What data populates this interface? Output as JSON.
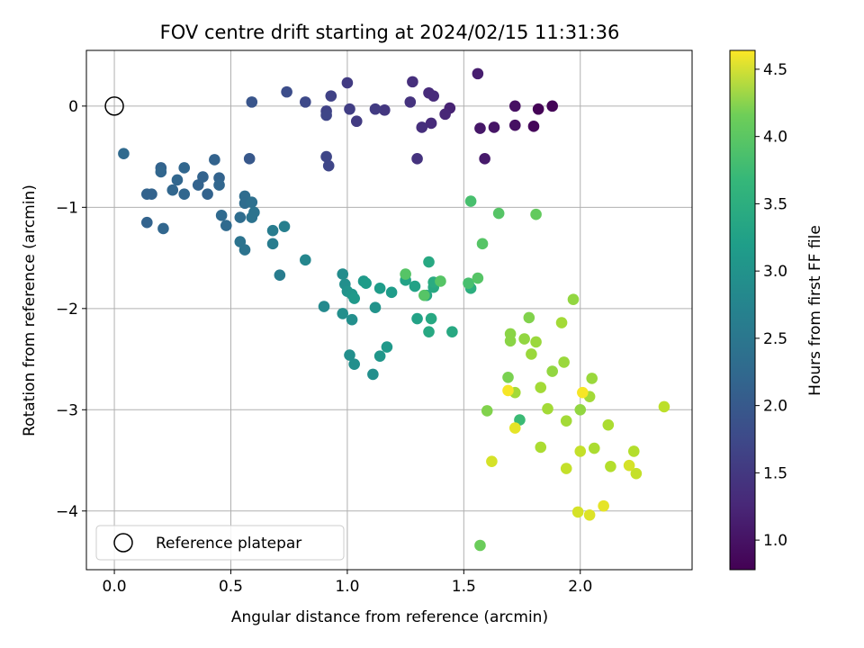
{
  "chart_data": {
    "type": "scatter",
    "title": "FOV centre drift starting at 2024/02/15 11:31:36",
    "xlabel": "Angular distance from reference (arcmin)",
    "ylabel": "Rotation from reference (arcmin)",
    "xlim": [
      -0.12,
      2.48
    ],
    "ylim": [
      -4.58,
      0.55
    ],
    "xticks": [
      0.0,
      0.5,
      1.0,
      1.5,
      2.0
    ],
    "xtick_labels": [
      "0.0",
      "0.5",
      "1.0",
      "1.5",
      "2.0"
    ],
    "yticks": [
      0,
      -1,
      -2,
      -3,
      -4
    ],
    "ytick_labels": [
      "0",
      "−1",
      "−2",
      "−3",
      "−4"
    ],
    "grid": true,
    "legend": {
      "placement": "lower-left",
      "entries": [
        "Reference platepar"
      ]
    },
    "reference_point": {
      "x": 0.0,
      "y": 0.0
    },
    "colorbar": {
      "label": "Hours from first FF file",
      "colormap": "viridis",
      "min": 0.78,
      "max": 4.64,
      "ticks": [
        1.0,
        1.5,
        2.0,
        2.5,
        3.0,
        3.5,
        4.0,
        4.5
      ],
      "tick_labels": [
        "1.0",
        "1.5",
        "2.0",
        "2.5",
        "3.0",
        "3.5",
        "4.0",
        "4.5"
      ]
    },
    "series": [
      {
        "points": [
          [
            1.82,
            -0.03,
            0.8
          ],
          [
            1.88,
            0.0,
            0.82
          ],
          [
            1.8,
            -0.2,
            0.85
          ],
          [
            1.72,
            0.0,
            0.95
          ],
          [
            1.72,
            -0.19,
            0.95
          ],
          [
            1.63,
            -0.21,
            1.0
          ],
          [
            1.57,
            -0.22,
            1.02
          ],
          [
            1.59,
            -0.52,
            1.05
          ],
          [
            1.56,
            0.32,
            1.1
          ],
          [
            1.44,
            -0.02,
            1.15
          ],
          [
            1.42,
            -0.08,
            1.2
          ],
          [
            1.37,
            0.1,
            1.25
          ],
          [
            1.35,
            0.13,
            1.25
          ],
          [
            1.36,
            -0.17,
            1.25
          ],
          [
            1.32,
            -0.21,
            1.3
          ],
          [
            1.28,
            0.24,
            1.3
          ],
          [
            1.27,
            0.04,
            1.35
          ],
          [
            1.3,
            -0.52,
            1.35
          ],
          [
            1.16,
            -0.04,
            1.4
          ],
          [
            1.12,
            -0.03,
            1.45
          ],
          [
            1.04,
            -0.15,
            1.45
          ],
          [
            1.0,
            0.23,
            1.45
          ],
          [
            1.01,
            -0.03,
            1.5
          ],
          [
            0.93,
            0.1,
            1.55
          ],
          [
            0.91,
            -0.05,
            1.55
          ],
          [
            0.91,
            -0.09,
            1.6
          ],
          [
            0.91,
            -0.5,
            1.6
          ],
          [
            0.92,
            -0.59,
            1.6
          ],
          [
            0.82,
            0.04,
            1.65
          ],
          [
            0.74,
            0.14,
            1.7
          ],
          [
            0.59,
            0.04,
            1.8
          ],
          [
            0.58,
            -0.52,
            1.85
          ],
          [
            0.04,
            -0.47,
            2.1
          ],
          [
            0.14,
            -0.87,
            2.0
          ],
          [
            0.16,
            -0.87,
            2.0
          ],
          [
            0.14,
            -1.15,
            2.0
          ],
          [
            0.2,
            -0.61,
            2.0
          ],
          [
            0.2,
            -0.65,
            2.05
          ],
          [
            0.21,
            -1.21,
            2.05
          ],
          [
            0.25,
            -0.83,
            2.05
          ],
          [
            0.27,
            -0.73,
            2.05
          ],
          [
            0.3,
            -0.61,
            2.05
          ],
          [
            0.3,
            -0.87,
            2.05
          ],
          [
            0.36,
            -0.78,
            2.0
          ],
          [
            0.38,
            -0.7,
            2.0
          ],
          [
            0.4,
            -0.87,
            2.0
          ],
          [
            0.43,
            -0.53,
            2.0
          ],
          [
            0.45,
            -0.71,
            2.0
          ],
          [
            0.45,
            -0.78,
            2.05
          ],
          [
            0.46,
            -1.08,
            2.1
          ],
          [
            0.48,
            -1.18,
            2.1
          ],
          [
            0.54,
            -1.1,
            2.15
          ],
          [
            0.54,
            -1.34,
            2.25
          ],
          [
            0.56,
            -0.89,
            2.15
          ],
          [
            0.56,
            -0.96,
            2.15
          ],
          [
            0.56,
            -1.42,
            2.25
          ],
          [
            0.59,
            -0.95,
            2.2
          ],
          [
            0.6,
            -1.05,
            2.25
          ],
          [
            0.59,
            -1.1,
            2.25
          ],
          [
            0.68,
            -1.23,
            2.4
          ],
          [
            0.68,
            -1.36,
            2.4
          ],
          [
            0.71,
            -1.67,
            2.4
          ],
          [
            0.73,
            -1.19,
            2.45
          ],
          [
            0.82,
            -1.52,
            2.55
          ],
          [
            0.9,
            -1.98,
            2.6
          ],
          [
            0.98,
            -1.66,
            2.65
          ],
          [
            0.99,
            -1.76,
            2.7
          ],
          [
            1.0,
            -1.83,
            2.75
          ],
          [
            0.98,
            -2.05,
            2.7
          ],
          [
            1.02,
            -2.11,
            2.7
          ],
          [
            1.02,
            -1.86,
            2.8
          ],
          [
            1.03,
            -1.9,
            2.85
          ],
          [
            1.01,
            -2.46,
            2.7
          ],
          [
            1.03,
            -2.55,
            2.7
          ],
          [
            1.07,
            -1.73,
            2.85
          ],
          [
            1.08,
            -1.75,
            2.9
          ],
          [
            1.11,
            -2.65,
            2.7
          ],
          [
            1.12,
            -1.99,
            2.75
          ],
          [
            1.14,
            -1.8,
            2.9
          ],
          [
            1.14,
            -2.47,
            2.8
          ],
          [
            1.17,
            -2.38,
            2.85
          ],
          [
            1.19,
            -1.84,
            2.9
          ],
          [
            1.25,
            -1.72,
            3.0
          ],
          [
            1.29,
            -1.78,
            3.0
          ],
          [
            1.3,
            -2.1,
            3.0
          ],
          [
            1.34,
            -1.87,
            3.05
          ],
          [
            1.35,
            -1.54,
            3.1
          ],
          [
            1.35,
            -2.23,
            3.1
          ],
          [
            1.36,
            -2.1,
            3.1
          ],
          [
            1.37,
            -1.79,
            3.1
          ],
          [
            1.37,
            -1.74,
            3.15
          ],
          [
            1.45,
            -2.23,
            3.1
          ],
          [
            1.53,
            -1.8,
            3.2
          ],
          [
            1.25,
            -1.66,
            3.6
          ],
          [
            1.33,
            -1.87,
            3.6
          ],
          [
            1.4,
            -1.73,
            3.6
          ],
          [
            1.52,
            -1.75,
            3.5
          ],
          [
            1.53,
            -0.94,
            3.5
          ],
          [
            1.56,
            -1.7,
            3.6
          ],
          [
            1.58,
            -1.36,
            3.6
          ],
          [
            1.65,
            -1.06,
            3.6
          ],
          [
            1.81,
            -1.07,
            3.7
          ],
          [
            1.74,
            -3.1,
            3.4
          ],
          [
            1.57,
            -4.34,
            3.75
          ],
          [
            1.6,
            -3.01,
            3.9
          ],
          [
            1.69,
            -2.68,
            3.85
          ],
          [
            1.7,
            -2.25,
            3.95
          ],
          [
            1.7,
            -2.32,
            3.95
          ],
          [
            1.72,
            -2.83,
            4.1
          ],
          [
            1.76,
            -2.3,
            4.0
          ],
          [
            1.78,
            -2.09,
            3.9
          ],
          [
            1.79,
            -2.45,
            4.05
          ],
          [
            1.81,
            -2.33,
            4.05
          ],
          [
            1.83,
            -2.78,
            4.1
          ],
          [
            1.83,
            -3.37,
            4.15
          ],
          [
            1.86,
            -2.99,
            4.1
          ],
          [
            1.88,
            -2.62,
            4.0
          ],
          [
            1.92,
            -2.14,
            4.1
          ],
          [
            1.93,
            -2.53,
            4.05
          ],
          [
            1.94,
            -3.58,
            4.3
          ],
          [
            1.94,
            -3.11,
            4.1
          ],
          [
            1.97,
            -1.91,
            4.0
          ],
          [
            2.0,
            -3.0,
            4.0
          ],
          [
            2.0,
            -3.41,
            4.3
          ],
          [
            2.04,
            -2.87,
            4.1
          ],
          [
            2.05,
            -2.69,
            4.05
          ],
          [
            2.06,
            -3.38,
            4.15
          ],
          [
            2.12,
            -3.15,
            4.15
          ],
          [
            2.13,
            -3.56,
            4.2
          ],
          [
            2.21,
            -3.55,
            4.4
          ],
          [
            2.23,
            -3.41,
            4.2
          ],
          [
            2.24,
            -3.63,
            4.3
          ],
          [
            2.36,
            -2.97,
            4.25
          ],
          [
            1.62,
            -3.51,
            4.4
          ],
          [
            1.69,
            -2.81,
            4.6
          ],
          [
            1.72,
            -3.18,
            4.5
          ],
          [
            1.99,
            -4.01,
            4.4
          ],
          [
            2.01,
            -2.83,
            4.6
          ],
          [
            2.04,
            -4.04,
            4.45
          ],
          [
            2.1,
            -3.95,
            4.5
          ]
        ]
      }
    ]
  }
}
